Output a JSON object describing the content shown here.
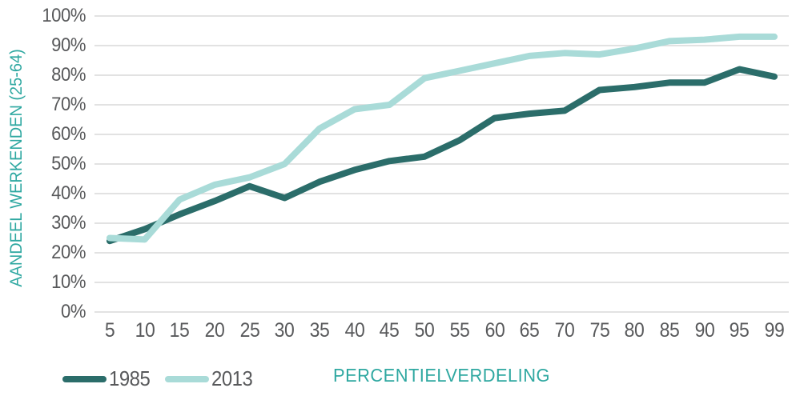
{
  "chart": {
    "y_axis_title": "AANDEEL WERKENDEN (25-64)",
    "x_axis_title": "PERCENTIELVERDELING",
    "colors": {
      "series_1985": "#2b6d6a",
      "series_2013": "#a9dbd8",
      "axis_text": "#58595b",
      "teal_text": "#2fa8a1",
      "gridline": "#d8d8d8"
    }
  },
  "chart_data": {
    "type": "line",
    "title": "",
    "xlabel": "PERCENTIELVERDELING",
    "ylabel": "AANDEEL WERKENDEN (25-64)",
    "categories": [
      "5",
      "10",
      "15",
      "20",
      "25",
      "30",
      "35",
      "40",
      "45",
      "50",
      "55",
      "60",
      "65",
      "70",
      "75",
      "80",
      "85",
      "90",
      "95",
      "99"
    ],
    "series": [
      {
        "name": "1985",
        "color": "#2b6d6a",
        "values": [
          24,
          28,
          33,
          37.5,
          42.5,
          38.5,
          44,
          48,
          51,
          52.5,
          58,
          65.5,
          67,
          68,
          75,
          76,
          77.5,
          77.5,
          82,
          79.5
        ]
      },
      {
        "name": "2013",
        "color": "#a9dbd8",
        "values": [
          25,
          24.5,
          38,
          43,
          45.5,
          50,
          62,
          68.5,
          70,
          79,
          81.5,
          84,
          86.5,
          87.5,
          87,
          89,
          91.5,
          92,
          93,
          93
        ]
      }
    ],
    "ylim": [
      0,
      100
    ],
    "ytick_step": 10,
    "yticks": [
      "0%",
      "10%",
      "20%",
      "30%",
      "40%",
      "50%",
      "60%",
      "70%",
      "80%",
      "90%",
      "100%"
    ],
    "grid": "horizontal",
    "legend_position": "bottom-left"
  }
}
